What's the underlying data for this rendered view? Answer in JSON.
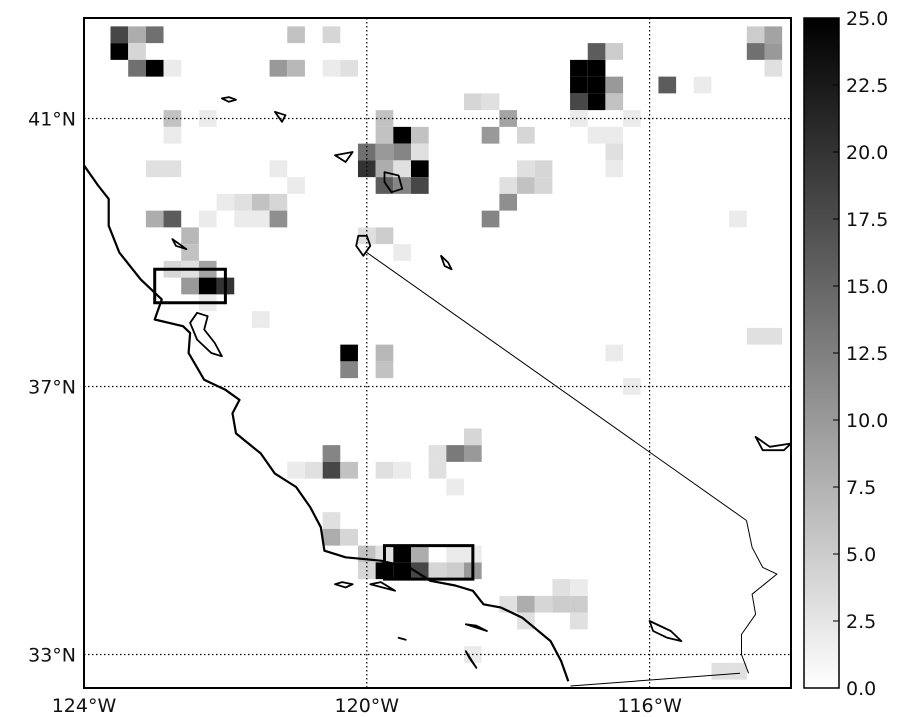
{
  "map": {
    "lon_range": [
      -124,
      -114
    ],
    "lat_range": [
      32.5,
      42.5
    ],
    "x_ticks": [
      {
        "value": -124,
        "label": "124°W"
      },
      {
        "value": -120,
        "label": "120°W"
      },
      {
        "value": -116,
        "label": "116°W"
      }
    ],
    "y_ticks": [
      {
        "value": 41,
        "label": "41°N"
      },
      {
        "value": 37,
        "label": "37°N"
      },
      {
        "value": 33,
        "label": "33°N"
      }
    ],
    "grid": "dotted"
  },
  "colorbar": {
    "min": 0,
    "max": 25,
    "tick_labels": [
      "25.0",
      "22.5",
      "20.0",
      "17.5",
      "15.0",
      "12.5",
      "10.0",
      "7.5",
      "5.0",
      "2.5",
      "0.0"
    ],
    "colormap": "white-to-black"
  },
  "cells": [
    {
      "lon": -123.5,
      "lat": 42.25,
      "v": 18
    },
    {
      "lon": -123.25,
      "lat": 42.25,
      "v": 8
    },
    {
      "lon": -123.0,
      "lat": 42.25,
      "v": 14
    },
    {
      "lon": -123.5,
      "lat": 42.0,
      "v": 25
    },
    {
      "lon": -123.25,
      "lat": 42.0,
      "v": 4
    },
    {
      "lon": -123.25,
      "lat": 41.75,
      "v": 14
    },
    {
      "lon": -123.0,
      "lat": 41.75,
      "v": 25
    },
    {
      "lon": -122.75,
      "lat": 41.75,
      "v": 2
    },
    {
      "lon": -121.0,
      "lat": 42.25,
      "v": 6
    },
    {
      "lon": -120.5,
      "lat": 42.25,
      "v": 4
    },
    {
      "lon": -121.25,
      "lat": 41.75,
      "v": 10
    },
    {
      "lon": -121.0,
      "lat": 41.75,
      "v": 7
    },
    {
      "lon": -120.5,
      "lat": 41.75,
      "v": 2
    },
    {
      "lon": -120.25,
      "lat": 41.75,
      "v": 3
    },
    {
      "lon": -122.75,
      "lat": 41.0,
      "v": 6
    },
    {
      "lon": -122.25,
      "lat": 41.0,
      "v": 2
    },
    {
      "lon": -122.75,
      "lat": 40.75,
      "v": 2
    },
    {
      "lon": -123.0,
      "lat": 40.25,
      "v": 3
    },
    {
      "lon": -122.75,
      "lat": 40.25,
      "v": 3
    },
    {
      "lon": -121.25,
      "lat": 40.25,
      "v": 2
    },
    {
      "lon": -121.0,
      "lat": 40.0,
      "v": 2
    },
    {
      "lon": -122.0,
      "lat": 39.75,
      "v": 2
    },
    {
      "lon": -121.75,
      "lat": 39.75,
      "v": 3
    },
    {
      "lon": -121.5,
      "lat": 39.75,
      "v": 6
    },
    {
      "lon": -121.25,
      "lat": 39.75,
      "v": 4
    },
    {
      "lon": -123.0,
      "lat": 39.5,
      "v": 8
    },
    {
      "lon": -122.75,
      "lat": 39.5,
      "v": 16
    },
    {
      "lon": -122.25,
      "lat": 39.5,
      "v": 2
    },
    {
      "lon": -121.75,
      "lat": 39.5,
      "v": 2
    },
    {
      "lon": -121.5,
      "lat": 39.5,
      "v": 2
    },
    {
      "lon": -121.25,
      "lat": 39.5,
      "v": 11
    },
    {
      "lon": -122.5,
      "lat": 39.25,
      "v": 7
    },
    {
      "lon": -122.5,
      "lat": 39.0,
      "v": 6
    },
    {
      "lon": -122.75,
      "lat": 38.75,
      "v": 4
    },
    {
      "lon": -122.5,
      "lat": 38.75,
      "v": 3
    },
    {
      "lon": -122.25,
      "lat": 38.75,
      "v": 9
    },
    {
      "lon": -122.5,
      "lat": 38.5,
      "v": 10
    },
    {
      "lon": -122.25,
      "lat": 38.5,
      "v": 25
    },
    {
      "lon": -122.0,
      "lat": 38.5,
      "v": 20
    },
    {
      "lon": -122.25,
      "lat": 38.25,
      "v": 2
    },
    {
      "lon": -121.5,
      "lat": 38.0,
      "v": 2
    },
    {
      "lon": -120.25,
      "lat": 37.5,
      "v": 25
    },
    {
      "lon": -120.25,
      "lat": 37.25,
      "v": 12
    },
    {
      "lon": -119.75,
      "lat": 37.5,
      "v": 7
    },
    {
      "lon": -119.75,
      "lat": 37.25,
      "v": 6
    },
    {
      "lon": -119.75,
      "lat": 40.75,
      "v": 6
    },
    {
      "lon": -119.5,
      "lat": 40.75,
      "v": 25
    },
    {
      "lon": -119.25,
      "lat": 40.75,
      "v": 6
    },
    {
      "lon": -120.0,
      "lat": 40.5,
      "v": 14
    },
    {
      "lon": -119.75,
      "lat": 40.5,
      "v": 10
    },
    {
      "lon": -119.5,
      "lat": 40.5,
      "v": 12
    },
    {
      "lon": -119.25,
      "lat": 40.5,
      "v": 3
    },
    {
      "lon": -120.0,
      "lat": 40.25,
      "v": 20
    },
    {
      "lon": -119.75,
      "lat": 40.25,
      "v": 8
    },
    {
      "lon": -119.5,
      "lat": 40.25,
      "v": 3
    },
    {
      "lon": -119.25,
      "lat": 40.25,
      "v": 25
    },
    {
      "lon": -119.75,
      "lat": 40.0,
      "v": 16
    },
    {
      "lon": -119.5,
      "lat": 40.0,
      "v": 12
    },
    {
      "lon": -119.25,
      "lat": 40.0,
      "v": 18
    },
    {
      "lon": -119.75,
      "lat": 41.0,
      "v": 6
    },
    {
      "lon": -120.0,
      "lat": 39.25,
      "v": 3
    },
    {
      "lon": -119.75,
      "lat": 39.25,
      "v": 5
    },
    {
      "lon": -119.5,
      "lat": 39.0,
      "v": 2
    },
    {
      "lon": -118.5,
      "lat": 41.25,
      "v": 4
    },
    {
      "lon": -118.25,
      "lat": 41.25,
      "v": 3
    },
    {
      "lon": -118.0,
      "lat": 41.0,
      "v": 9
    },
    {
      "lon": -117.75,
      "lat": 40.75,
      "v": 4
    },
    {
      "lon": -118.25,
      "lat": 40.75,
      "v": 10
    },
    {
      "lon": -117.75,
      "lat": 40.25,
      "v": 3
    },
    {
      "lon": -117.5,
      "lat": 40.25,
      "v": 4
    },
    {
      "lon": -118.0,
      "lat": 40.0,
      "v": 3
    },
    {
      "lon": -117.75,
      "lat": 40.0,
      "v": 6
    },
    {
      "lon": -117.5,
      "lat": 40.0,
      "v": 4
    },
    {
      "lon": -118.0,
      "lat": 39.75,
      "v": 11
    },
    {
      "lon": -118.25,
      "lat": 39.5,
      "v": 12
    },
    {
      "lon": -116.75,
      "lat": 42.0,
      "v": 16
    },
    {
      "lon": -116.5,
      "lat": 42.0,
      "v": 5
    },
    {
      "lon": -117.0,
      "lat": 41.75,
      "v": 25
    },
    {
      "lon": -116.75,
      "lat": 41.75,
      "v": 25
    },
    {
      "lon": -117.0,
      "lat": 41.5,
      "v": 25
    },
    {
      "lon": -116.75,
      "lat": 41.5,
      "v": 25
    },
    {
      "lon": -116.5,
      "lat": 41.5,
      "v": 10
    },
    {
      "lon": -117.0,
      "lat": 41.25,
      "v": 18
    },
    {
      "lon": -116.75,
      "lat": 41.25,
      "v": 25
    },
    {
      "lon": -116.5,
      "lat": 41.25,
      "v": 6
    },
    {
      "lon": -117.0,
      "lat": 41.0,
      "v": 2
    },
    {
      "lon": -116.25,
      "lat": 41.0,
      "v": 2
    },
    {
      "lon": -116.75,
      "lat": 40.75,
      "v": 2
    },
    {
      "lon": -116.5,
      "lat": 40.75,
      "v": 2
    },
    {
      "lon": -116.5,
      "lat": 40.5,
      "v": 3
    },
    {
      "lon": -116.5,
      "lat": 40.25,
      "v": 2
    },
    {
      "lon": -115.75,
      "lat": 41.5,
      "v": 16
    },
    {
      "lon": -115.25,
      "lat": 41.5,
      "v": 2
    },
    {
      "lon": -114.5,
      "lat": 42.25,
      "v": 5
    },
    {
      "lon": -114.25,
      "lat": 42.25,
      "v": 9
    },
    {
      "lon": -114.5,
      "lat": 42.0,
      "v": 14
    },
    {
      "lon": -114.25,
      "lat": 42.0,
      "v": 10
    },
    {
      "lon": -114.25,
      "lat": 41.75,
      "v": 3
    },
    {
      "lon": -114.75,
      "lat": 39.5,
      "v": 2
    },
    {
      "lon": -114.5,
      "lat": 37.75,
      "v": 3
    },
    {
      "lon": -114.25,
      "lat": 37.75,
      "v": 3
    },
    {
      "lon": -116.5,
      "lat": 37.5,
      "v": 2
    },
    {
      "lon": -116.25,
      "lat": 37.0,
      "v": 2
    },
    {
      "lon": -120.5,
      "lat": 36.0,
      "v": 12
    },
    {
      "lon": -120.5,
      "lat": 35.75,
      "v": 18
    },
    {
      "lon": -120.25,
      "lat": 35.75,
      "v": 6
    },
    {
      "lon": -120.75,
      "lat": 35.75,
      "v": 3
    },
    {
      "lon": -121.0,
      "lat": 35.75,
      "v": 2
    },
    {
      "lon": -119.75,
      "lat": 35.75,
      "v": 3
    },
    {
      "lon": -119.5,
      "lat": 35.75,
      "v": 2
    },
    {
      "lon": -119.0,
      "lat": 36.0,
      "v": 3
    },
    {
      "lon": -118.75,
      "lat": 36.0,
      "v": 13
    },
    {
      "lon": -118.5,
      "lat": 36.0,
      "v": 10
    },
    {
      "lon": -118.5,
      "lat": 36.25,
      "v": 4
    },
    {
      "lon": -119.0,
      "lat": 35.75,
      "v": 3
    },
    {
      "lon": -118.75,
      "lat": 35.5,
      "v": 2
    },
    {
      "lon": -120.5,
      "lat": 35.0,
      "v": 3
    },
    {
      "lon": -120.5,
      "lat": 34.75,
      "v": 8
    },
    {
      "lon": -120.25,
      "lat": 34.75,
      "v": 4
    },
    {
      "lon": -120.0,
      "lat": 34.5,
      "v": 6
    },
    {
      "lon": -119.75,
      "lat": 34.5,
      "v": 3
    },
    {
      "lon": -120.0,
      "lat": 34.25,
      "v": 4
    },
    {
      "lon": -119.5,
      "lat": 34.5,
      "v": 25
    },
    {
      "lon": -119.25,
      "lat": 34.5,
      "v": 8
    },
    {
      "lon": -119.75,
      "lat": 34.25,
      "v": 25
    },
    {
      "lon": -119.5,
      "lat": 34.25,
      "v": 25
    },
    {
      "lon": -119.25,
      "lat": 34.25,
      "v": 18
    },
    {
      "lon": -119.0,
      "lat": 34.25,
      "v": 4
    },
    {
      "lon": -118.75,
      "lat": 34.25,
      "v": 5
    },
    {
      "lon": -118.5,
      "lat": 34.25,
      "v": 10
    },
    {
      "lon": -118.75,
      "lat": 34.5,
      "v": 2
    },
    {
      "lon": -118.5,
      "lat": 34.5,
      "v": 2
    },
    {
      "lon": -118.0,
      "lat": 33.75,
      "v": 3
    },
    {
      "lon": -117.75,
      "lat": 33.75,
      "v": 8
    },
    {
      "lon": -117.5,
      "lat": 33.75,
      "v": 4
    },
    {
      "lon": -117.25,
      "lat": 33.75,
      "v": 5
    },
    {
      "lon": -117.0,
      "lat": 33.75,
      "v": 5
    },
    {
      "lon": -117.25,
      "lat": 34.0,
      "v": 3
    },
    {
      "lon": -117.0,
      "lat": 34.0,
      "v": 2
    },
    {
      "lon": -117.75,
      "lat": 33.5,
      "v": 3
    },
    {
      "lon": -117.0,
      "lat": 33.5,
      "v": 3
    },
    {
      "lon": -118.5,
      "lat": 33.0,
      "v": 2
    },
    {
      "lon": -115.0,
      "lat": 32.75,
      "v": 3
    },
    {
      "lon": -114.75,
      "lat": 32.75,
      "v": 3
    }
  ],
  "highlight_boxes": [
    {
      "lon": [
        -123.0,
        -122.0
      ],
      "lat": [
        38.25,
        38.75
      ]
    },
    {
      "lon": [
        -119.75,
        -118.5
      ],
      "lat": [
        34.125,
        34.625
      ]
    }
  ],
  "coastline": [
    [
      -124.0,
      40.3
    ],
    [
      -123.8,
      40.0
    ],
    [
      -123.65,
      39.8
    ],
    [
      -123.65,
      39.4
    ],
    [
      -123.5,
      39.0
    ],
    [
      -123.2,
      38.6
    ],
    [
      -122.9,
      38.3
    ],
    [
      -123.0,
      38.0
    ],
    [
      -122.6,
      37.9
    ],
    [
      -122.5,
      37.8
    ],
    [
      -122.52,
      37.5
    ],
    [
      -122.3,
      37.1
    ],
    [
      -122.0,
      36.95
    ],
    [
      -121.8,
      36.8
    ],
    [
      -121.9,
      36.6
    ],
    [
      -121.85,
      36.3
    ],
    [
      -121.5,
      36.0
    ],
    [
      -121.3,
      35.7
    ],
    [
      -121.0,
      35.5
    ],
    [
      -120.8,
      35.2
    ],
    [
      -120.65,
      34.9
    ],
    [
      -120.6,
      34.55
    ],
    [
      -120.3,
      34.45
    ],
    [
      -119.8,
      34.4
    ],
    [
      -119.4,
      34.3
    ],
    [
      -119.1,
      34.1
    ],
    [
      -118.75,
      34.03
    ],
    [
      -118.5,
      33.95
    ],
    [
      -118.35,
      33.75
    ],
    [
      -118.1,
      33.7
    ],
    [
      -117.8,
      33.55
    ],
    [
      -117.4,
      33.2
    ],
    [
      -117.25,
      32.9
    ],
    [
      -117.15,
      32.6
    ]
  ],
  "bay": [
    [
      -122.4,
      38.1
    ],
    [
      -122.5,
      37.95
    ],
    [
      -122.4,
      37.7
    ],
    [
      -122.2,
      37.5
    ],
    [
      -122.05,
      37.45
    ],
    [
      -122.15,
      37.65
    ],
    [
      -122.3,
      37.85
    ],
    [
      -122.25,
      38.05
    ]
  ],
  "border_ca_nv": [
    [
      -120.0,
      39.0
    ],
    [
      -114.63,
      35.0
    ]
  ],
  "colorado_river": [
    [
      -114.63,
      35.0
    ],
    [
      -114.55,
      34.6
    ],
    [
      -114.4,
      34.3
    ],
    [
      -114.2,
      34.2
    ],
    [
      -114.55,
      33.9
    ],
    [
      -114.5,
      33.6
    ],
    [
      -114.7,
      33.3
    ],
    [
      -114.7,
      33.0
    ],
    [
      -114.6,
      32.72
    ]
  ],
  "border_mexico": [
    [
      -117.12,
      32.53
    ],
    [
      -114.72,
      32.72
    ]
  ],
  "lakes": [
    {
      "points": [
        [
          -120.0,
          39.25
        ],
        [
          -119.95,
          39.1
        ],
        [
          -120.05,
          38.95
        ],
        [
          -120.15,
          39.1
        ],
        [
          -120.12,
          39.25
        ]
      ]
    },
    {
      "points": [
        [
          -119.75,
          40.2
        ],
        [
          -119.55,
          40.15
        ],
        [
          -119.5,
          39.95
        ],
        [
          -119.65,
          39.9
        ],
        [
          -119.75,
          40.05
        ]
      ]
    },
    {
      "points": [
        [
          -118.95,
          38.95
        ],
        [
          -118.85,
          38.85
        ],
        [
          -118.8,
          38.75
        ],
        [
          -118.9,
          38.8
        ]
      ]
    },
    {
      "points": [
        [
          -122.05,
          41.3
        ],
        [
          -121.95,
          41.25
        ],
        [
          -121.85,
          41.28
        ],
        [
          -121.95,
          41.32
        ]
      ]
    },
    {
      "points": [
        [
          -121.3,
          41.1
        ],
        [
          -121.15,
          41.05
        ],
        [
          -121.2,
          40.95
        ]
      ]
    },
    {
      "points": [
        [
          -120.45,
          40.45
        ],
        [
          -120.2,
          40.5
        ],
        [
          -120.3,
          40.35
        ]
      ]
    },
    {
      "points": [
        [
          -122.75,
          39.2
        ],
        [
          -122.55,
          39.05
        ],
        [
          -122.7,
          39.1
        ]
      ]
    },
    {
      "points": [
        [
          -116.0,
          33.5
        ],
        [
          -115.7,
          33.35
        ],
        [
          -115.55,
          33.2
        ],
        [
          -115.75,
          33.25
        ],
        [
          -115.95,
          33.35
        ]
      ]
    },
    {
      "points": [
        [
          -114.5,
          36.25
        ],
        [
          -114.3,
          36.1
        ],
        [
          -114.0,
          36.15
        ],
        [
          -114.1,
          36.05
        ],
        [
          -114.4,
          36.05
        ]
      ]
    }
  ],
  "islands": [
    {
      "points": [
        [
          -120.45,
          34.05
        ],
        [
          -120.3,
          34.0
        ],
        [
          -120.2,
          34.05
        ],
        [
          -120.35,
          34.08
        ]
      ]
    },
    {
      "points": [
        [
          -119.95,
          34.05
        ],
        [
          -119.6,
          33.95
        ],
        [
          -119.8,
          34.08
        ]
      ]
    },
    {
      "points": [
        [
          -118.6,
          33.45
        ],
        [
          -118.3,
          33.35
        ],
        [
          -118.45,
          33.43
        ]
      ]
    },
    {
      "points": [
        [
          -118.6,
          33.05
        ],
        [
          -118.45,
          32.8
        ],
        [
          -118.55,
          32.95
        ]
      ]
    },
    {
      "points": [
        [
          -119.55,
          33.25
        ],
        [
          -119.45,
          33.22
        ]
      ]
    }
  ]
}
